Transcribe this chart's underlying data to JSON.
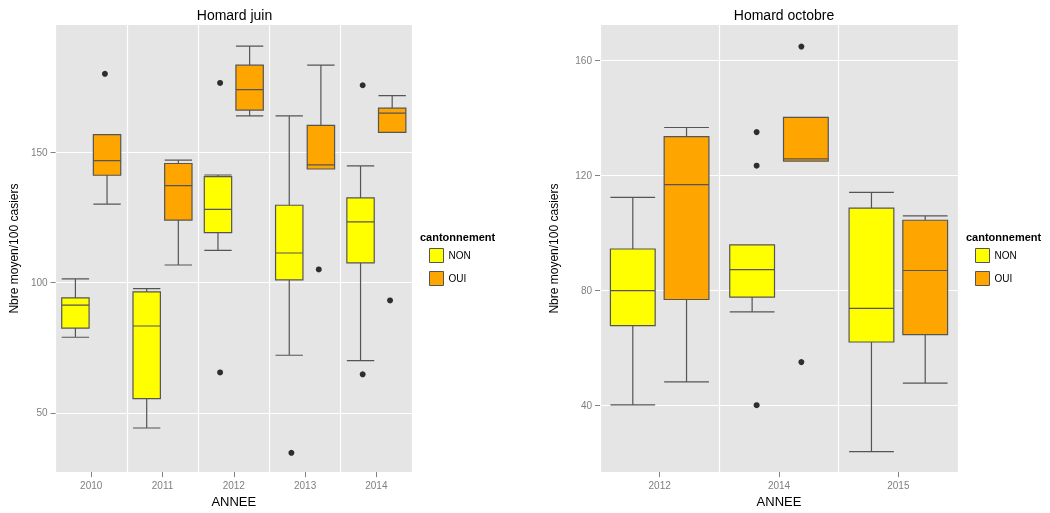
{
  "chart_data": [
    {
      "type": "box",
      "title": "Homard juin",
      "xlabel": "ANNEE",
      "ylabel": "Nbre moyen/100 casiers",
      "legend_title": "cantonnement",
      "legend": "right",
      "grid": true,
      "categories": [
        "2010",
        "2011",
        "2012",
        "2013",
        "2014"
      ],
      "ylim": [
        27.3,
        198.7
      ],
      "yticks": [
        50,
        100,
        150
      ],
      "series": [
        {
          "name": "NON",
          "color": "#ffff00",
          "boxes": [
            {
              "low": 79.0,
              "q1": 82.5,
              "median": 91.3,
              "q3": 94.1,
              "high": 101.4
            },
            {
              "low": 44.2,
              "q1": 55.5,
              "median": 83.3,
              "q3": 96.4,
              "high": 97.6
            },
            {
              "low": 112.3,
              "q1": 119.1,
              "median": 128.0,
              "q3": 140.6,
              "high": 141.2,
              "outliers": [
                176.5,
                65.5
              ]
            },
            {
              "low": 72.1,
              "q1": 101.0,
              "median": 111.3,
              "q3": 129.6,
              "high": 163.9,
              "outliers": [
                34.7
              ]
            },
            {
              "low": 70.0,
              "q1": 107.5,
              "median": 123.2,
              "q3": 132.4,
              "high": 144.7,
              "outliers": [
                175.6,
                64.8
              ]
            }
          ]
        },
        {
          "name": "OUI",
          "color": "#ffa500",
          "boxes": [
            {
              "low": 130.0,
              "q1": 141.1,
              "median": 146.7,
              "q3": 156.7,
              "high": 156.7,
              "outliers": [
                180.0
              ]
            },
            {
              "low": 106.7,
              "q1": 123.9,
              "median": 137.1,
              "q3": 145.6,
              "high": 146.9
            },
            {
              "low": 163.9,
              "q1": 166.1,
              "median": 173.9,
              "q3": 183.3,
              "high": 190.6
            },
            {
              "low": 143.5,
              "q1": 143.5,
              "median": 145.1,
              "q3": 160.2,
              "high": 183.3,
              "outliers": [
                105.0
              ]
            },
            {
              "low": 157.5,
              "q1": 157.5,
              "median": 164.9,
              "q3": 166.8,
              "high": 171.6,
              "outliers": [
                93.1
              ]
            }
          ]
        }
      ]
    },
    {
      "type": "box",
      "title": "Homard octobre",
      "xlabel": "ANNEE",
      "ylabel": "Nbre moyen/100 casiers",
      "legend_title": "cantonnement",
      "legend": "right",
      "grid": true,
      "categories": [
        "2012",
        "2014",
        "2015"
      ],
      "ylim": [
        16.7,
        172.4
      ],
      "yticks": [
        40,
        80,
        120,
        160
      ],
      "series": [
        {
          "name": "NON",
          "color": "#ffff00",
          "boxes": [
            {
              "low": 40.1,
              "q1": 67.7,
              "median": 79.9,
              "q3": 94.4,
              "high": 112.4
            },
            {
              "low": 72.5,
              "q1": 77.6,
              "median": 87.2,
              "q3": 95.8,
              "high": 95.8,
              "outliers": [
                135.1,
                123.4,
                40.0
              ]
            },
            {
              "low": 23.8,
              "q1": 62.0,
              "median": 73.7,
              "q3": 108.6,
              "high": 114.1
            }
          ]
        },
        {
          "name": "OUI",
          "color": "#ffa500",
          "boxes": [
            {
              "low": 48.1,
              "q1": 76.8,
              "median": 116.8,
              "q3": 133.5,
              "high": 136.7
            },
            {
              "low": 125.0,
              "q1": 125.0,
              "median": 125.8,
              "q3": 140.2,
              "high": 140.2,
              "outliers": [
                164.9,
                55.0
              ]
            },
            {
              "low": 47.7,
              "q1": 64.6,
              "median": 86.9,
              "q3": 104.4,
              "high": 105.9
            }
          ]
        }
      ]
    }
  ]
}
